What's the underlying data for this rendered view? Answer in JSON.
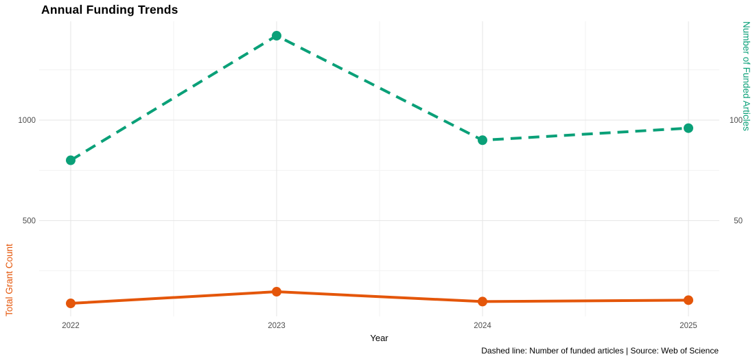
{
  "title": "Annual Funding Trends",
  "caption": "Dashed line: Number of funded articles | Source: Web of Science",
  "chart_data": {
    "type": "line",
    "title": "Annual Funding Trends",
    "x": [
      2022,
      2023,
      2024,
      2025
    ],
    "x_tick_labels": [
      "2022",
      "2023",
      "2024",
      "2025"
    ],
    "xlabel": "Year",
    "series": [
      {
        "name": "Total Grant Count",
        "axis": "left",
        "values": [
          88,
          146,
          97,
          104
        ],
        "color": "#E4560A",
        "style": "solid"
      },
      {
        "name": "Number of Funded Articles",
        "axis": "right",
        "values": [
          80,
          142,
          90,
          96
        ],
        "color": "#0AA078",
        "style": "dashed"
      }
    ],
    "left_axis": {
      "label": "Total Grant Count",
      "ticks": [
        500,
        1000
      ],
      "minor_ticks": [
        250,
        750,
        1250
      ],
      "color": "#E4560A"
    },
    "right_axis": {
      "label": "Number of Funded Articles",
      "ticks": [
        50,
        100
      ],
      "scale_factor_vs_left": 10,
      "color": "#0AA078"
    },
    "ylim_left": [
      23,
      1492
    ],
    "grid": true,
    "legend_position": "none",
    "annotations": [
      "Dashed line: Number of funded articles | Source: Web of Science"
    ]
  },
  "colors": {
    "grant_line": "#E4560A",
    "articles_line": "#0AA078",
    "grid_major": "#E4E4E4",
    "grid_minor": "#F2F2F2",
    "tick_label": "#4D4D4D",
    "background": "#FFFFFF"
  }
}
